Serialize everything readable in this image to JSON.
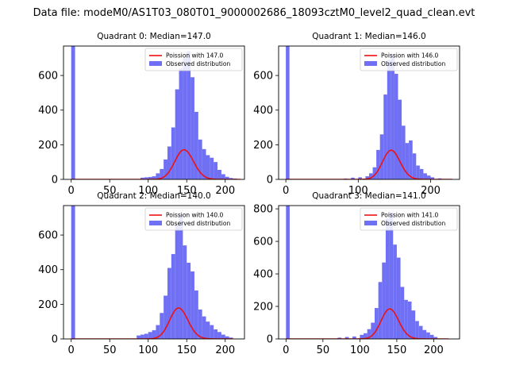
{
  "figure": {
    "suptitle": "Data file: modeM0/AS1T03_080T01_9000002686_18093cztM0_level2_quad_clean.evt"
  },
  "colors": {
    "hist": "#7070f5",
    "poisson": "#ee1111"
  },
  "chart_data": [
    {
      "type": "bar",
      "title": "Quadrant 0: Median=147.0",
      "xlim": [
        -10,
        225
      ],
      "ylim": [
        0,
        770
      ],
      "xticks": [
        0,
        50,
        100,
        150,
        200
      ],
      "yticks": [
        0,
        200,
        400,
        600
      ],
      "legend": {
        "placement": "top-right",
        "entries": [
          "Poission with 147.0",
          "Observed distribution"
        ]
      },
      "bin_width": 5,
      "bins": [
        [
          0,
          770
        ],
        [
          90,
          10
        ],
        [
          95,
          12
        ],
        [
          100,
          14
        ],
        [
          105,
          18
        ],
        [
          110,
          35
        ],
        [
          115,
          60
        ],
        [
          120,
          115
        ],
        [
          125,
          190
        ],
        [
          130,
          300
        ],
        [
          135,
          520
        ],
        [
          140,
          640
        ],
        [
          145,
          700
        ],
        [
          150,
          740
        ],
        [
          155,
          590
        ],
        [
          160,
          390
        ],
        [
          165,
          230
        ],
        [
          170,
          175
        ],
        [
          175,
          140
        ],
        [
          180,
          125
        ],
        [
          185,
          100
        ],
        [
          190,
          55
        ],
        [
          195,
          30
        ],
        [
          200,
          15
        ],
        [
          205,
          8
        ],
        [
          210,
          5
        ]
      ],
      "poisson_mean": 147.0,
      "poisson_scale": 5200,
      "poisson_range": [
        0,
        220
      ]
    },
    {
      "type": "bar",
      "title": "Quadrant 1: Median=146.0",
      "xlim": [
        -10,
        240
      ],
      "ylim": [
        0,
        770
      ],
      "xticks": [
        0,
        100,
        200
      ],
      "yticks": [
        0,
        200,
        400,
        600
      ],
      "legend": {
        "placement": "top-right",
        "entries": [
          "Poission with 146.0",
          "Observed distribution"
        ]
      },
      "bin_width": 5,
      "bins": [
        [
          0,
          770
        ],
        [
          80,
          5
        ],
        [
          90,
          10
        ],
        [
          100,
          12
        ],
        [
          110,
          18
        ],
        [
          115,
          35
        ],
        [
          120,
          70
        ],
        [
          125,
          170
        ],
        [
          130,
          260
        ],
        [
          135,
          490
        ],
        [
          140,
          690
        ],
        [
          145,
          720
        ],
        [
          150,
          610
        ],
        [
          155,
          460
        ],
        [
          160,
          310
        ],
        [
          165,
          210
        ],
        [
          170,
          225
        ],
        [
          175,
          150
        ],
        [
          180,
          80
        ],
        [
          185,
          60
        ],
        [
          190,
          35
        ],
        [
          195,
          22
        ],
        [
          200,
          12
        ],
        [
          210,
          6
        ]
      ],
      "poisson_mean": 146.0,
      "poisson_scale": 5100,
      "poisson_range": [
        0,
        230
      ]
    },
    {
      "type": "bar",
      "title": "Quadrant 2: Median=140.0",
      "xlim": [
        -10,
        225
      ],
      "ylim": [
        0,
        770
      ],
      "xticks": [
        0,
        50,
        100,
        150,
        200
      ],
      "yticks": [
        0,
        200,
        400,
        600
      ],
      "legend": {
        "placement": "top-right",
        "entries": [
          "Poission with 140.0",
          "Observed distribution"
        ]
      },
      "bin_width": 5,
      "bins": [
        [
          0,
          770
        ],
        [
          85,
          20
        ],
        [
          90,
          25
        ],
        [
          95,
          30
        ],
        [
          100,
          40
        ],
        [
          105,
          50
        ],
        [
          110,
          80
        ],
        [
          115,
          150
        ],
        [
          120,
          250
        ],
        [
          125,
          410
        ],
        [
          130,
          490
        ],
        [
          135,
          660
        ],
        [
          140,
          720
        ],
        [
          145,
          540
        ],
        [
          150,
          440
        ],
        [
          155,
          390
        ],
        [
          160,
          280
        ],
        [
          165,
          170
        ],
        [
          170,
          130
        ],
        [
          175,
          100
        ],
        [
          180,
          80
        ],
        [
          185,
          55
        ],
        [
          190,
          40
        ],
        [
          195,
          25
        ],
        [
          200,
          15
        ],
        [
          205,
          8
        ]
      ],
      "poisson_mean": 140.0,
      "poisson_scale": 5300,
      "poisson_range": [
        0,
        210
      ]
    },
    {
      "type": "bar",
      "title": "Quadrant 3: Median=141.0",
      "xlim": [
        -10,
        235
      ],
      "ylim": [
        0,
        820
      ],
      "xticks": [
        0,
        50,
        100,
        150,
        200
      ],
      "yticks": [
        0,
        200,
        400,
        600,
        800
      ],
      "legend": {
        "placement": "top-right",
        "entries": [
          "Poission with 141.0",
          "Observed distribution"
        ]
      },
      "bin_width": 5,
      "bins": [
        [
          0,
          820
        ],
        [
          70,
          8
        ],
        [
          80,
          12
        ],
        [
          90,
          15
        ],
        [
          100,
          25
        ],
        [
          105,
          35
        ],
        [
          110,
          60
        ],
        [
          115,
          100
        ],
        [
          120,
          190
        ],
        [
          125,
          350
        ],
        [
          130,
          470
        ],
        [
          135,
          740
        ],
        [
          140,
          780
        ],
        [
          145,
          580
        ],
        [
          150,
          500
        ],
        [
          155,
          320
        ],
        [
          160,
          240
        ],
        [
          165,
          230
        ],
        [
          170,
          175
        ],
        [
          175,
          110
        ],
        [
          180,
          80
        ],
        [
          185,
          55
        ],
        [
          190,
          40
        ],
        [
          195,
          25
        ],
        [
          200,
          12
        ]
      ],
      "poisson_mean": 141.0,
      "poisson_scale": 5500,
      "poisson_range": [
        0,
        220
      ]
    }
  ]
}
